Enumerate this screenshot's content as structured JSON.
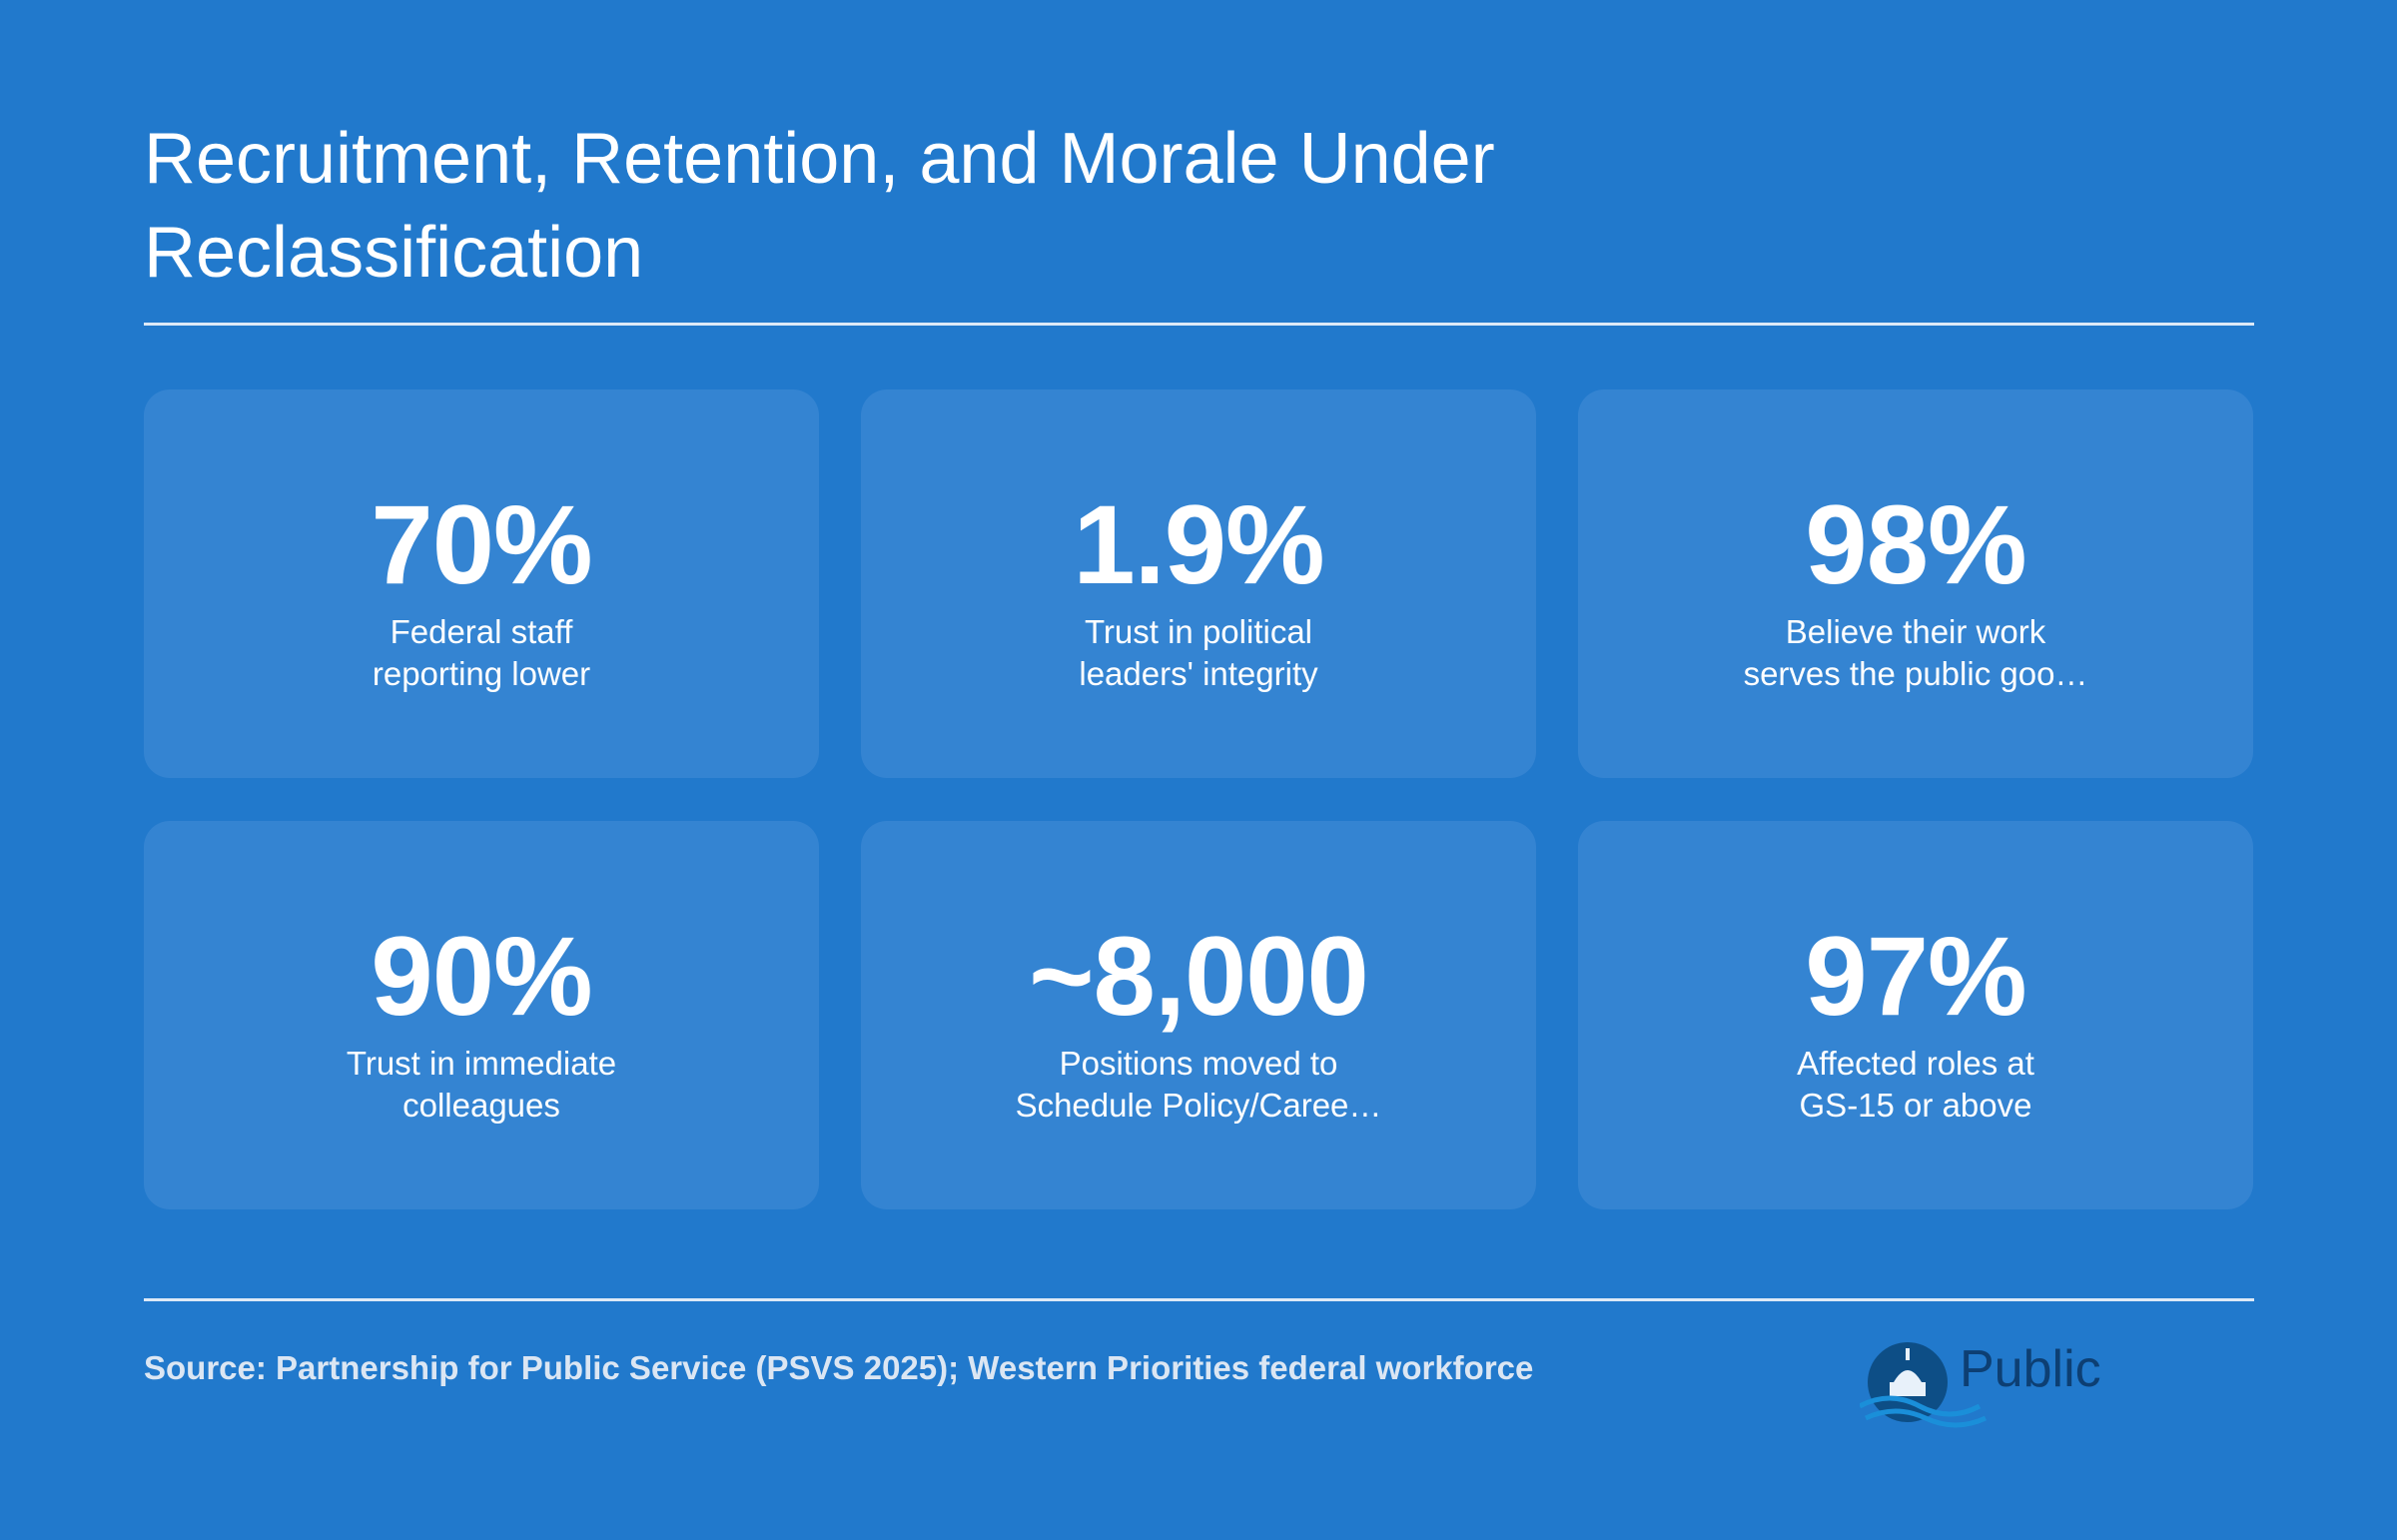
{
  "header": {
    "title": "Recruitment, Retention, and Morale Under Reclassification"
  },
  "cards": [
    {
      "value": "70%",
      "label": [
        "Federal staff",
        "reporting lower"
      ]
    },
    {
      "value": "1.9%",
      "label": [
        "Trust in political",
        "leaders' integrity"
      ]
    },
    {
      "value": "98%",
      "label": [
        "Believe their work",
        "serves the public goo…"
      ]
    },
    {
      "value": "90%",
      "label": [
        "Trust in immediate",
        "colleagues"
      ]
    },
    {
      "value": "~8,000",
      "label": [
        "Positions moved to",
        "Schedule Policy/Caree…"
      ]
    },
    {
      "value": "97%",
      "label": [
        "Affected roles at",
        "GS-15 or above"
      ]
    }
  ],
  "footer": {
    "source": "Source: Partnership for Public Service (PSVS 2025); Western Priorities federal workforce",
    "logo": "Public"
  }
}
